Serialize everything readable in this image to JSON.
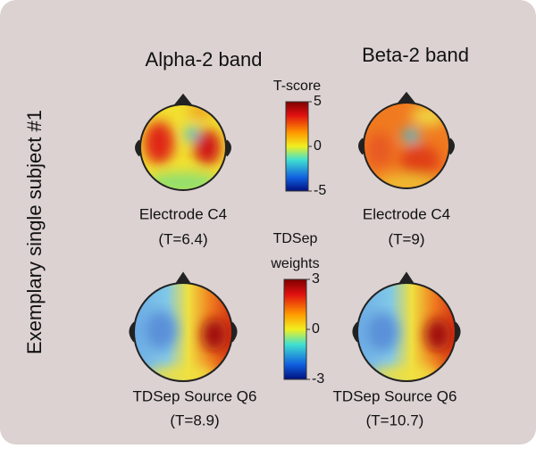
{
  "side_label": "Exemplary single subject #1",
  "columns": [
    {
      "title": "Alpha-2 band",
      "maps": [
        {
          "label": "Electrode C4",
          "stat": "(T=6.4)"
        },
        {
          "label": "TDSep Source Q6",
          "stat": "(T=8.9)"
        }
      ]
    },
    {
      "title": "Beta-2 band",
      "maps": [
        {
          "label": "Electrode C4",
          "stat": "(T=9)"
        },
        {
          "label": "TDSep Source Q6",
          "stat": "(T=10.7)"
        }
      ]
    }
  ],
  "colorbars": [
    {
      "title": [
        "T-score"
      ],
      "ticks": [
        5,
        0,
        -5
      ]
    },
    {
      "title": [
        "TDSep",
        "weights"
      ],
      "ticks": [
        3,
        0,
        -3
      ]
    }
  ]
}
